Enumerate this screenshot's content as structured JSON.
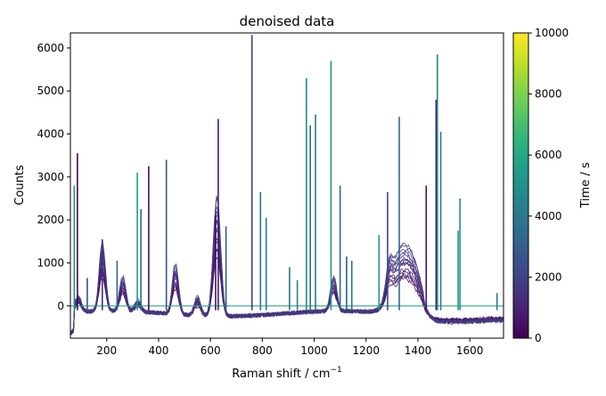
{
  "chart_data": {
    "type": "line",
    "title": "denoised data",
    "xlabel": "Raman shift / cm",
    "xlabel_sup": "−1",
    "ylabel": "Counts",
    "xlim": [
      60,
      1730
    ],
    "ylim": [
      -750,
      6350
    ],
    "xticks": [
      200,
      400,
      600,
      800,
      1000,
      1200,
      1400,
      1600
    ],
    "yticks": [
      0,
      1000,
      2000,
      3000,
      4000,
      5000,
      6000
    ],
    "grid": false,
    "colorbar": {
      "label": "Time / s",
      "range": [
        0,
        10000
      ],
      "ticks": [
        0,
        2000,
        4000,
        6000,
        8000,
        10000
      ],
      "colormap": "viridis",
      "colors": [
        "#440154",
        "#482878",
        "#3e4989",
        "#31688e",
        "#26828e",
        "#1f9e89",
        "#35b779",
        "#6ece58",
        "#b5de2b",
        "#fde725"
      ]
    },
    "baseline_series": {
      "x": [
        60,
        200,
        400,
        600,
        800,
        1000,
        1200,
        1400,
        1600,
        1730
      ],
      "y": [
        0,
        0,
        0,
        0,
        0,
        0,
        0,
        0,
        0,
        0
      ]
    },
    "broad_peaks": [
      {
        "x": 90,
        "height": 300
      },
      {
        "x": 183,
        "height": 1300
      },
      {
        "x": 262,
        "height": 650
      },
      {
        "x": 320,
        "height": 220
      },
      {
        "x": 465,
        "height": 950
      },
      {
        "x": 550,
        "height": 350
      },
      {
        "x": 625,
        "height": 2250
      },
      {
        "x": 1075,
        "height": 650
      },
      {
        "x": 1290,
        "height": 500
      },
      {
        "x": 1335,
        "height": 1150
      },
      {
        "x": 1390,
        "height": 600
      }
    ],
    "spikes": [
      {
        "x": 75,
        "height": 2800,
        "time": 5000
      },
      {
        "x": 87,
        "height": 3550,
        "time": 200
      },
      {
        "x": 125,
        "height": 650,
        "time": 2500
      },
      {
        "x": 183,
        "height": 1550,
        "time": 1200
      },
      {
        "x": 240,
        "height": 1050,
        "time": 3000
      },
      {
        "x": 318,
        "height": 3100,
        "time": 5500
      },
      {
        "x": 332,
        "height": 2250,
        "time": 3500
      },
      {
        "x": 362,
        "height": 3250,
        "time": 300
      },
      {
        "x": 430,
        "height": 3400,
        "time": 2600
      },
      {
        "x": 620,
        "height": 2100,
        "time": 500
      },
      {
        "x": 630,
        "height": 4350,
        "time": 800
      },
      {
        "x": 660,
        "height": 1850,
        "time": 2800
      },
      {
        "x": 760,
        "height": 6300,
        "time": 1800
      },
      {
        "x": 793,
        "height": 2650,
        "time": 3800
      },
      {
        "x": 815,
        "height": 2050,
        "time": 4200
      },
      {
        "x": 905,
        "height": 900,
        "time": 3600
      },
      {
        "x": 935,
        "height": 600,
        "time": 4500
      },
      {
        "x": 970,
        "height": 5300,
        "time": 4800
      },
      {
        "x": 985,
        "height": 4200,
        "time": 3700
      },
      {
        "x": 1005,
        "height": 4450,
        "time": 4000
      },
      {
        "x": 1065,
        "height": 5700,
        "time": 5200
      },
      {
        "x": 1100,
        "height": 2800,
        "time": 3300
      },
      {
        "x": 1125,
        "height": 1150,
        "time": 2900
      },
      {
        "x": 1145,
        "height": 1050,
        "time": 3900
      },
      {
        "x": 1250,
        "height": 1650,
        "time": 5300
      },
      {
        "x": 1283,
        "height": 2650,
        "time": 2200
      },
      {
        "x": 1328,
        "height": 4400,
        "time": 3400
      },
      {
        "x": 1432,
        "height": 2800,
        "time": 500
      },
      {
        "x": 1470,
        "height": 4800,
        "time": 1000
      },
      {
        "x": 1475,
        "height": 5850,
        "time": 4600
      },
      {
        "x": 1488,
        "height": 4050,
        "time": 4400
      },
      {
        "x": 1555,
        "height": 1750,
        "time": 5600
      },
      {
        "x": 1562,
        "height": 2500,
        "time": 4900
      },
      {
        "x": 1705,
        "height": 300,
        "time": 4100
      }
    ]
  }
}
